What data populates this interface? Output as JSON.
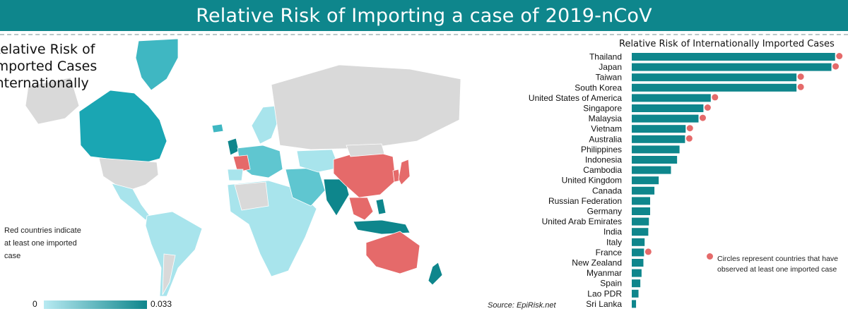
{
  "header": {
    "title": "Relative Risk of Importing a case of 2019-nCoV"
  },
  "map": {
    "title_lines": [
      "Relative Risk of",
      "Imported Cases",
      "Internationally"
    ],
    "note": "Red countries indicate at least one imported case",
    "legend": {
      "min_label": "0",
      "max_label": "0.033",
      "low_color": "#b8eaf2",
      "high_color": "#0e868c"
    },
    "case_color": "#e56a6a",
    "no_data_color": "#d9d9d9"
  },
  "source": "Source: EpiRisk.net",
  "chart_note": "Circles represent countries that have observed at least one imported case",
  "chart_data": {
    "type": "bar",
    "orientation": "horizontal",
    "title": "Relative Risk of Internationally Imported Cases",
    "xlabel": "",
    "ylabel": "",
    "xlim": [
      0,
      0.033
    ],
    "bar_color": "#0e868c",
    "circle_color": "#e56a6a",
    "categories": [
      "Thailand",
      "Japan",
      "Taiwan",
      "South Korea",
      "United States of America",
      "Singapore",
      "Malaysia",
      "Vietnam",
      "Australia",
      "Philippines",
      "Indonesia",
      "Cambodia",
      "United Kingdom",
      "Canada",
      "Russian Federation",
      "Germany",
      "United Arab Emirates",
      "India",
      "Italy",
      "France",
      "New Zealand",
      "Myanmar",
      "Spain",
      "Lao PDR",
      "Sri Lanka"
    ],
    "values": [
      0.0332,
      0.0326,
      0.0269,
      0.0269,
      0.0129,
      0.0117,
      0.0109,
      0.0088,
      0.0087,
      0.0078,
      0.0074,
      0.0064,
      0.0044,
      0.0037,
      0.003,
      0.003,
      0.0028,
      0.0027,
      0.0021,
      0.002,
      0.0019,
      0.0016,
      0.0014,
      0.0011,
      0.0007
    ],
    "imported_case": [
      true,
      true,
      true,
      true,
      true,
      true,
      true,
      true,
      true,
      false,
      false,
      false,
      false,
      false,
      false,
      false,
      false,
      false,
      false,
      true,
      false,
      false,
      false,
      false,
      false
    ]
  }
}
